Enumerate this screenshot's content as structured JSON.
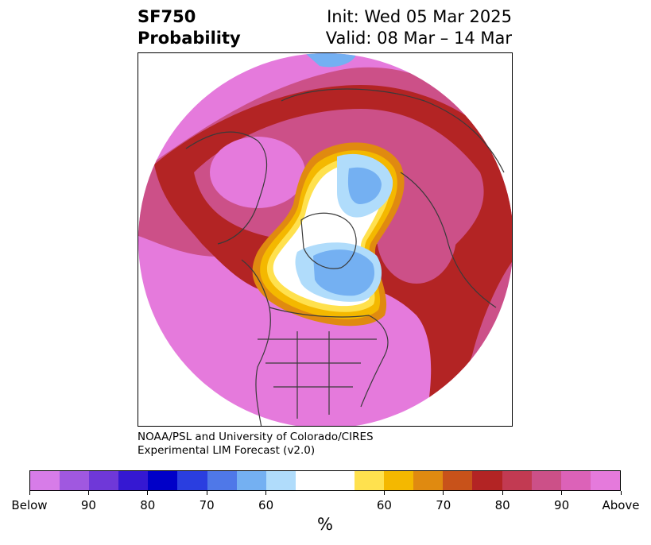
{
  "title": {
    "left_line1": "SF750",
    "left_line2": "Probability",
    "right_line1": "Init: Wed 05 Mar 2025",
    "right_line2": "Valid: 08 Mar – 14 Mar"
  },
  "credit": {
    "line1": "NOAA/PSL and University of Colorado/CIRES",
    "line2": "Experimental LIM Forecast (v2.0)"
  },
  "colorbar": {
    "units": "%",
    "colors": [
      "#d77ce8",
      "#a058e0",
      "#6f38d8",
      "#3518d2",
      "#0000c8",
      "#2a3ee0",
      "#4f78e8",
      "#74b0f2",
      "#b0dcfb",
      "#ffffff",
      "#ffffff",
      "#ffe14e",
      "#f4b800",
      "#e08a10",
      "#c8521a",
      "#b32424",
      "#c23a52",
      "#cc5088",
      "#dc62b8",
      "#e57adc"
    ],
    "tick_labels": [
      "Below",
      "90",
      "80",
      "70",
      "60",
      "60",
      "70",
      "80",
      "90",
      "Above"
    ]
  },
  "map": {
    "region": "Northern Hemisphere polar stereographic",
    "colors": {
      "above_strong": "#e57adc",
      "above_mid": "#cc5088",
      "red": "#b32424",
      "orange": "#c8521a",
      "amber": "#e08a10",
      "gold": "#f4b800",
      "yellow": "#ffe14e",
      "light_blue": "#b0dcfb",
      "mid_blue": "#74b0f2",
      "blue": "#4f78e8",
      "coast": "#3a3a3a"
    }
  }
}
